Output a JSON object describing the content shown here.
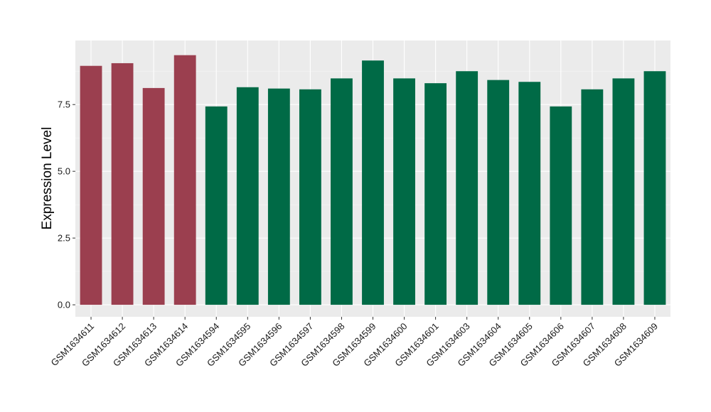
{
  "chart_data": {
    "type": "bar",
    "title": "",
    "xlabel": "",
    "ylabel": "Expression Level",
    "ylim": [
      -0.45,
      9.9
    ],
    "yticks": [
      0.0,
      2.5,
      5.0,
      7.5
    ],
    "ytick_labels": [
      "0.0",
      "2.5",
      "5.0",
      "7.5"
    ],
    "grid": true,
    "legend": "none",
    "categories": [
      "GSM1634611",
      "GSM1634612",
      "GSM1634613",
      "GSM1634614",
      "GSM1634594",
      "GSM1634595",
      "GSM1634596",
      "GSM1634597",
      "GSM1634598",
      "GSM1634599",
      "GSM1634600",
      "GSM1634601",
      "GSM1634603",
      "GSM1634604",
      "GSM1634605",
      "GSM1634606",
      "GSM1634607",
      "GSM1634608",
      "GSM1634609"
    ],
    "values": [
      8.95,
      9.05,
      8.12,
      9.35,
      7.43,
      8.15,
      8.1,
      8.07,
      8.48,
      9.15,
      8.48,
      8.3,
      8.75,
      8.42,
      8.35,
      7.43,
      8.07,
      8.48,
      8.75
    ],
    "bar_groups": [
      "red",
      "red",
      "red",
      "red",
      "green",
      "green",
      "green",
      "green",
      "green",
      "green",
      "green",
      "green",
      "green",
      "green",
      "green",
      "green",
      "green",
      "green",
      "green"
    ],
    "colors": {
      "red": "#9b3f4f",
      "green": "#006a46",
      "panel": "#ebebeb",
      "grid_major": "#ffffff",
      "grid_minor": "#f5f5f5",
      "tick": "#333333"
    }
  }
}
